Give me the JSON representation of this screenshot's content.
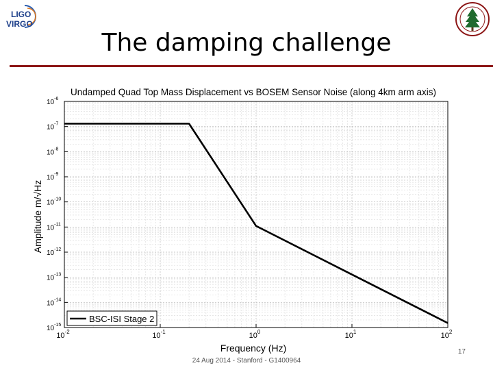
{
  "slide": {
    "title": "The damping challenge",
    "footer": "24 Aug 2014 - Stanford - G1400964",
    "page_number": "17",
    "accent_color": "#8c1515"
  },
  "logos": {
    "left": {
      "icon": "ligo-virgo-logo",
      "text_top": "LIGO",
      "text_bottom": "VIRGO"
    },
    "right": {
      "icon": "stanford-seal-icon"
    }
  },
  "chart_data": {
    "type": "line",
    "title": "Undamped Quad Top Mass Displacement vs BOSEM Sensor Noise (along 4km arm axis)",
    "xlabel": "Frequency (Hz)",
    "ylabel": "Amplitude m/√Hz",
    "x_scale": "log",
    "y_scale": "log",
    "xlim": [
      0.01,
      100
    ],
    "ylim": [
      1e-15,
      1e-06
    ],
    "grid": true,
    "legend_position": "bottom-left",
    "x_ticks": [
      {
        "base": "10",
        "exp": "-2"
      },
      {
        "base": "10",
        "exp": "-1"
      },
      {
        "base": "10",
        "exp": "0"
      },
      {
        "base": "10",
        "exp": "1"
      },
      {
        "base": "10",
        "exp": "2"
      }
    ],
    "y_ticks": [
      {
        "base": "10",
        "exp": "-15"
      },
      {
        "base": "10",
        "exp": "-14"
      },
      {
        "base": "10",
        "exp": "-13"
      },
      {
        "base": "10",
        "exp": "-12"
      },
      {
        "base": "10",
        "exp": "-11"
      },
      {
        "base": "10",
        "exp": "-10"
      },
      {
        "base": "10",
        "exp": "-9"
      },
      {
        "base": "10",
        "exp": "-8"
      },
      {
        "base": "10",
        "exp": "-7"
      },
      {
        "base": "10",
        "exp": "-6"
      }
    ],
    "series": [
      {
        "name": "BSC-ISI Stage 2",
        "color": "#000000",
        "x": [
          0.01,
          0.2,
          1,
          100
        ],
        "y": [
          1.3e-07,
          1.3e-07,
          1.1e-11,
          1.5e-15
        ]
      }
    ]
  }
}
